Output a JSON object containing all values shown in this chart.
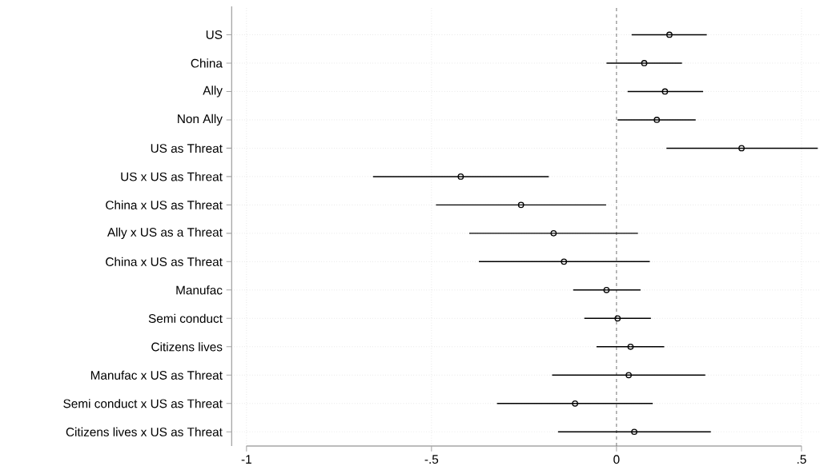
{
  "chart_data": {
    "type": "scatter",
    "orientation": "horizontal",
    "categories": [
      "US",
      "China",
      "Ally",
      "Non Ally",
      "US as Threat",
      "US x US as Threat",
      "China x US as Threat",
      "Ally x US as a Threat",
      "China x US as Threat",
      "Manufac",
      "Semi conduct",
      "Citizens lives",
      "Manufac x US as Threat",
      "Semi conduct x US as Threat",
      "Citizens lives x US as Threat"
    ],
    "values": [
      0.143,
      0.075,
      0.131,
      0.109,
      0.338,
      -0.421,
      -0.258,
      -0.17,
      -0.142,
      -0.027,
      0.003,
      0.038,
      0.033,
      -0.112,
      0.048
    ],
    "errors": [
      [
        0.041,
        0.244
      ],
      [
        -0.027,
        0.177
      ],
      [
        0.03,
        0.234
      ],
      [
        0.003,
        0.214
      ],
      [
        0.135,
        0.544
      ],
      [
        -0.658,
        -0.183
      ],
      [
        -0.488,
        -0.028
      ],
      [
        -0.398,
        0.058
      ],
      [
        -0.372,
        0.09
      ],
      [
        -0.117,
        0.065
      ],
      [
        -0.087,
        0.093
      ],
      [
        -0.054,
        0.129
      ],
      [
        -0.174,
        0.24
      ],
      [
        -0.323,
        0.098
      ],
      [
        -0.158,
        0.255
      ]
    ],
    "color": "#000000",
    "marker": "circle",
    "xlim": [
      -1.04,
      0.55
    ],
    "xticks": [
      -1,
      {
        "value": -0.5,
        "label": "-.5"
      },
      0,
      {
        "value": 0.5,
        "label": ".5"
      }
    ],
    "grid": true,
    "ref_lines": [
      {
        "axis": "x",
        "value": 0,
        "color": "#7f7f7f",
        "line_style": "dashed"
      }
    ]
  }
}
